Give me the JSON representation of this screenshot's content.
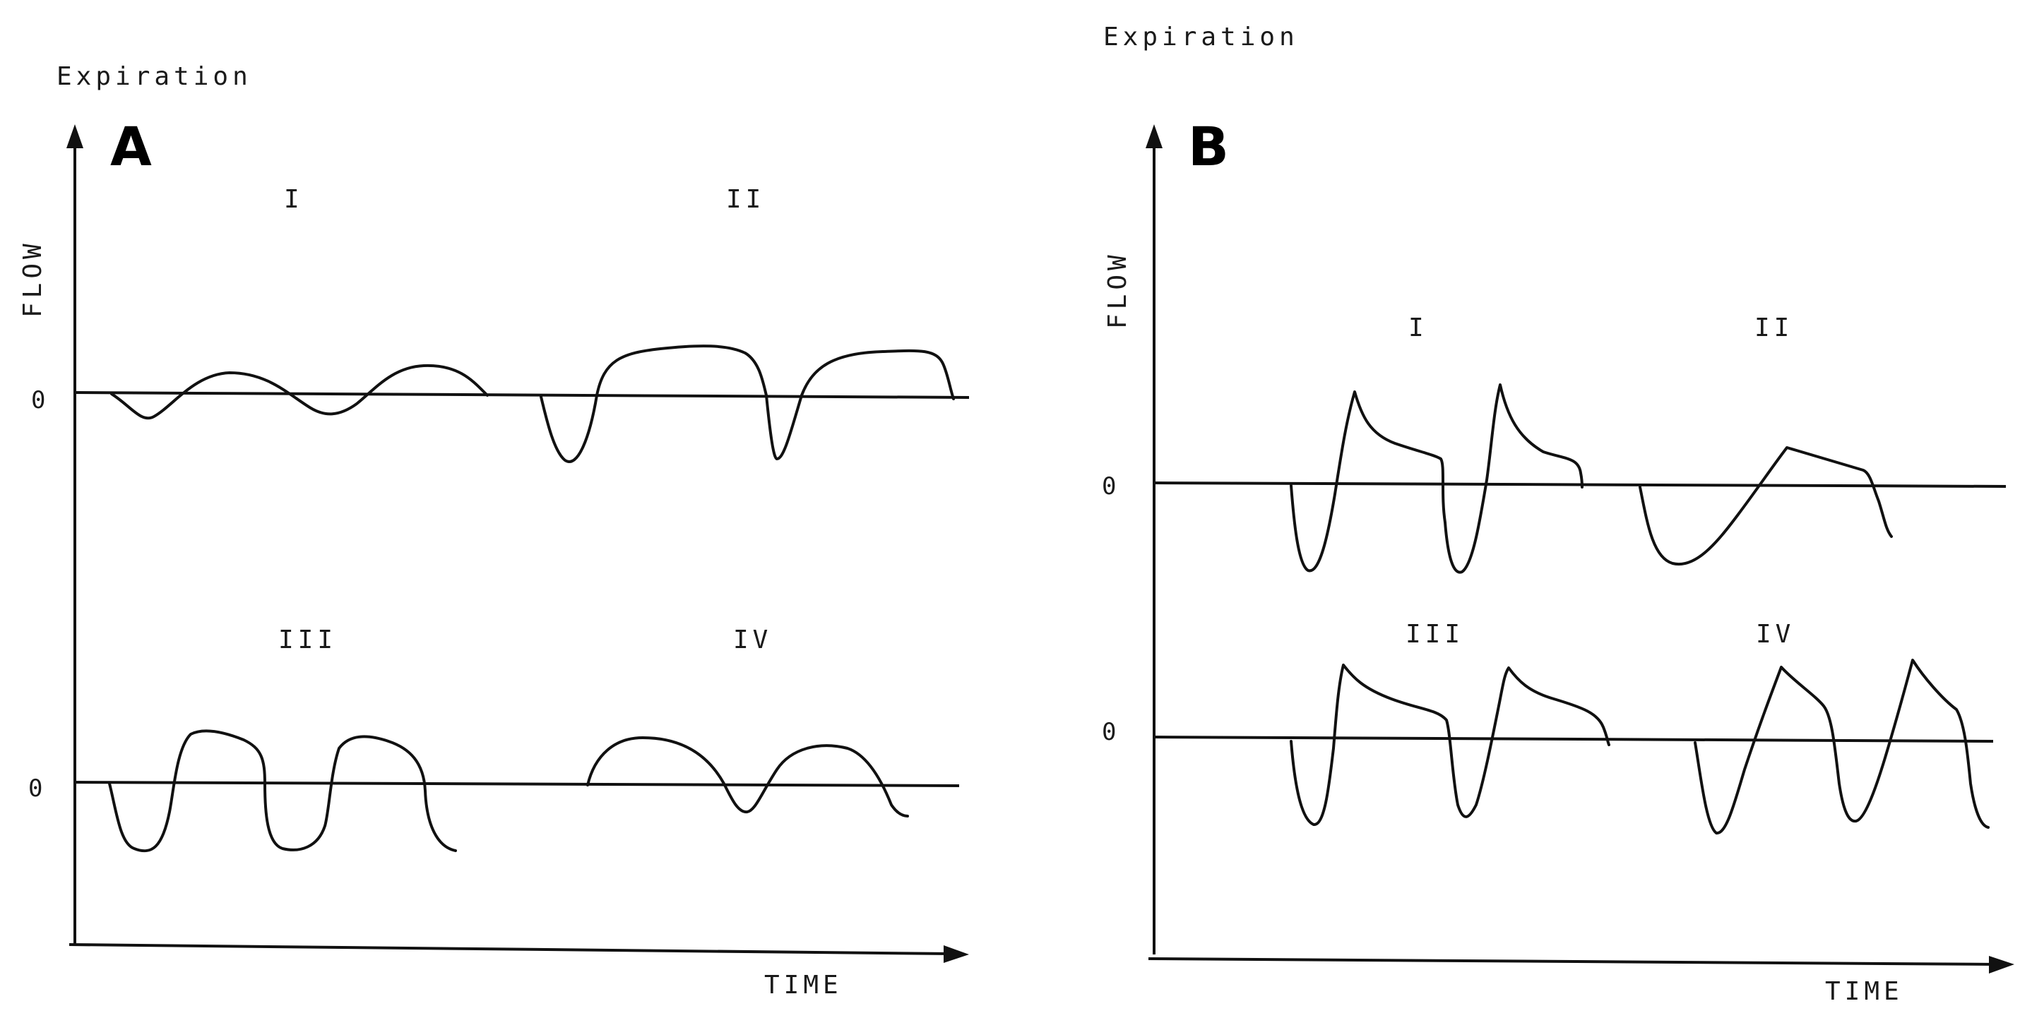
{
  "panels": {
    "a": {
      "letter": "A",
      "top_label": "Expiration",
      "y_label": "FLOW",
      "x_label": "TIME",
      "zero_labels": [
        "0",
        "0"
      ],
      "trace_labels": [
        "I",
        "II",
        "III",
        "IV"
      ]
    },
    "b": {
      "letter": "B",
      "top_label": "Expiration",
      "y_label": "FLOW",
      "x_label": "TIME",
      "zero_labels": [
        "0",
        "0"
      ],
      "trace_labels": [
        "I",
        "II",
        "III",
        "IV"
      ]
    }
  },
  "colors": {
    "ink": "#111111",
    "background": "#ffffff"
  }
}
